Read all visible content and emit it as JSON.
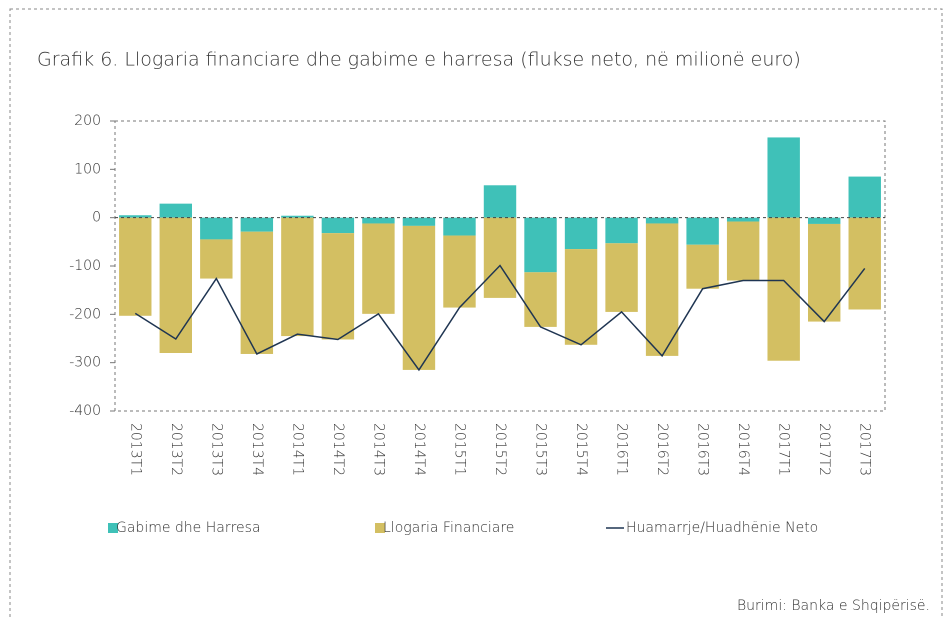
{
  "chart_data": {
    "type": "bar",
    "stacked": true,
    "title": "Grafik 6. Llogaria financiare dhe gabime e harresa (flukse neto, në milionë euro)",
    "source": "Burimi: Banka e Shqipërisë.",
    "categories": [
      "2013T1",
      "2013T2",
      "2013T3",
      "2013T4",
      "2014T1",
      "2014T2",
      "2014T3",
      "2014T4",
      "2015T1",
      "2015T2",
      "2015T3",
      "2015T4",
      "2016T1",
      "2016T2",
      "2016T3",
      "2016T4",
      "2017T1",
      "2017T2",
      "2017T3"
    ],
    "series": [
      {
        "name": "Gabime dhe Harresa",
        "type": "bar",
        "color": "#3fc1b8",
        "values": [
          5,
          29,
          -45,
          -29,
          4,
          -32,
          -12,
          -17,
          -37,
          67,
          -113,
          -65,
          -53,
          -12,
          -56,
          -8,
          166,
          -13,
          85
        ]
      },
      {
        "name": "Llogaria Financiare",
        "type": "bar",
        "color": "#d3bf62",
        "values": [
          -203,
          -280,
          -81,
          -253,
          -245,
          -220,
          -187,
          -298,
          -149,
          -166,
          -113,
          -198,
          -142,
          -274,
          -91,
          -122,
          -296,
          -202,
          -190
        ]
      },
      {
        "name": "Huamarrje/Huadhënie Neto",
        "type": "line",
        "color": "#1f3552",
        "values": [
          -198,
          -251,
          -126,
          -282,
          -241,
          -252,
          -199,
          -315,
          -186,
          -99,
          -226,
          -263,
          -195,
          -286,
          -147,
          -130,
          -130,
          -215,
          -105
        ]
      }
    ],
    "ylim": [
      -400,
      200
    ],
    "yticks": [
      -400,
      -300,
      -200,
      -100,
      0,
      100,
      200
    ]
  }
}
